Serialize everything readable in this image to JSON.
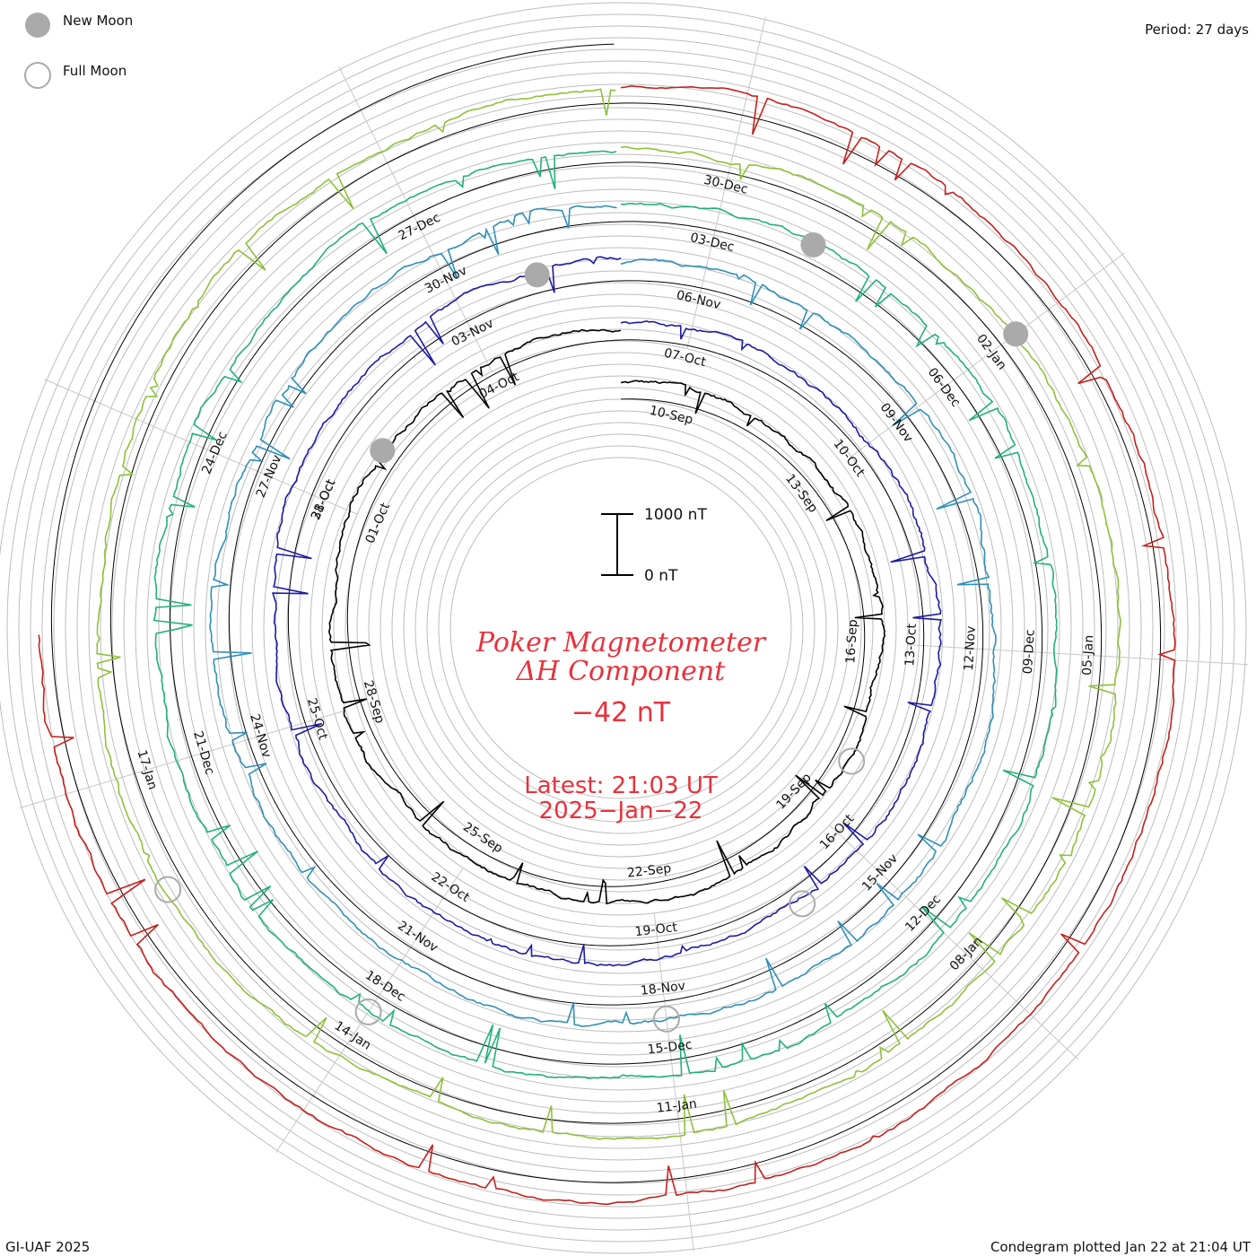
{
  "header": {
    "legend_new_moon": "New Moon",
    "legend_full_moon": "Full Moon",
    "period": "Period: 27 days"
  },
  "footer": {
    "credit": "GI-UAF 2025",
    "plotted": "Condegram plotted Jan 22 at 21:04 UT"
  },
  "center": {
    "title_line1": "Poker Magnetometer",
    "title_line2": "ΔH Component",
    "current_value": "−42 nT",
    "latest_line1": "Latest: 21:03 UT",
    "latest_line2": "2025−Jan−22"
  },
  "colors": {
    "title": "#e8323c",
    "grid": "#bdbdbd",
    "spoke": "#c8c8c8",
    "reference_circle": "#000000",
    "moon_fill": "#aaaaaa",
    "moon_stroke": "#aaaaaa"
  },
  "chart_data": {
    "type": "line",
    "form": "spiral condegram",
    "period_days": 27,
    "scale_bar": {
      "top_label": "1000 nT",
      "bottom_label": "0 nT",
      "top_value": 1000,
      "bottom_value": 0
    },
    "units": "nT",
    "series": [
      {
        "cycle": 1,
        "color": "#000000",
        "start_date": "2024-09-09",
        "date_labels": [
          "10-Sep",
          "13-Sep",
          "16-Sep",
          "19-Sep",
          "22-Sep",
          "25-Sep",
          "28-Sep"
        ]
      },
      {
        "cycle": 2,
        "color": "#1e1aa0",
        "start_date": "2024-09-30",
        "date_labels": [
          "01-Oct",
          "04-Oct",
          "07-Oct",
          "10-Oct",
          "13-Oct",
          "16-Oct",
          "19-Oct",
          "22-Oct",
          "25-Oct",
          "28-Oct"
        ]
      },
      {
        "cycle": 3,
        "color": "#2f8fb8",
        "start_date": "2024-10-27",
        "date_labels": [
          "31-Oct",
          "03-Nov",
          "06-Nov",
          "09-Nov",
          "12-Nov",
          "15-Nov",
          "18-Nov",
          "21-Nov",
          "24-Nov"
        ]
      },
      {
        "cycle": 4,
        "color": "#22b07a",
        "start_date": "2024-11-23",
        "date_labels": [
          "27-Nov",
          "30-Nov",
          "03-Dec",
          "06-Dec",
          "09-Dec",
          "12-Dec",
          "15-Dec",
          "18-Dec",
          "21-Dec"
        ]
      },
      {
        "cycle": 5,
        "color": "#8ec03a",
        "start_date": "2024-12-20",
        "date_labels": [
          "24-Dec",
          "27-Dec",
          "30-Dec",
          "02-Jan",
          "05-Jan",
          "08-Jan",
          "11-Jan",
          "14-Jan",
          "17-Jan"
        ]
      },
      {
        "cycle": 6,
        "color": "#c4201c",
        "start_date": "2025-01-16",
        "date_labels": []
      }
    ],
    "new_moons": [
      "2024-10-02",
      "2024-11-01",
      "2024-12-01",
      "2024-12-30"
    ],
    "full_moons": [
      "2024-09-18",
      "2024-10-17",
      "2024-11-15",
      "2024-12-15",
      "2025-01-13"
    ],
    "latest_value_nT": -42,
    "grid": true
  }
}
